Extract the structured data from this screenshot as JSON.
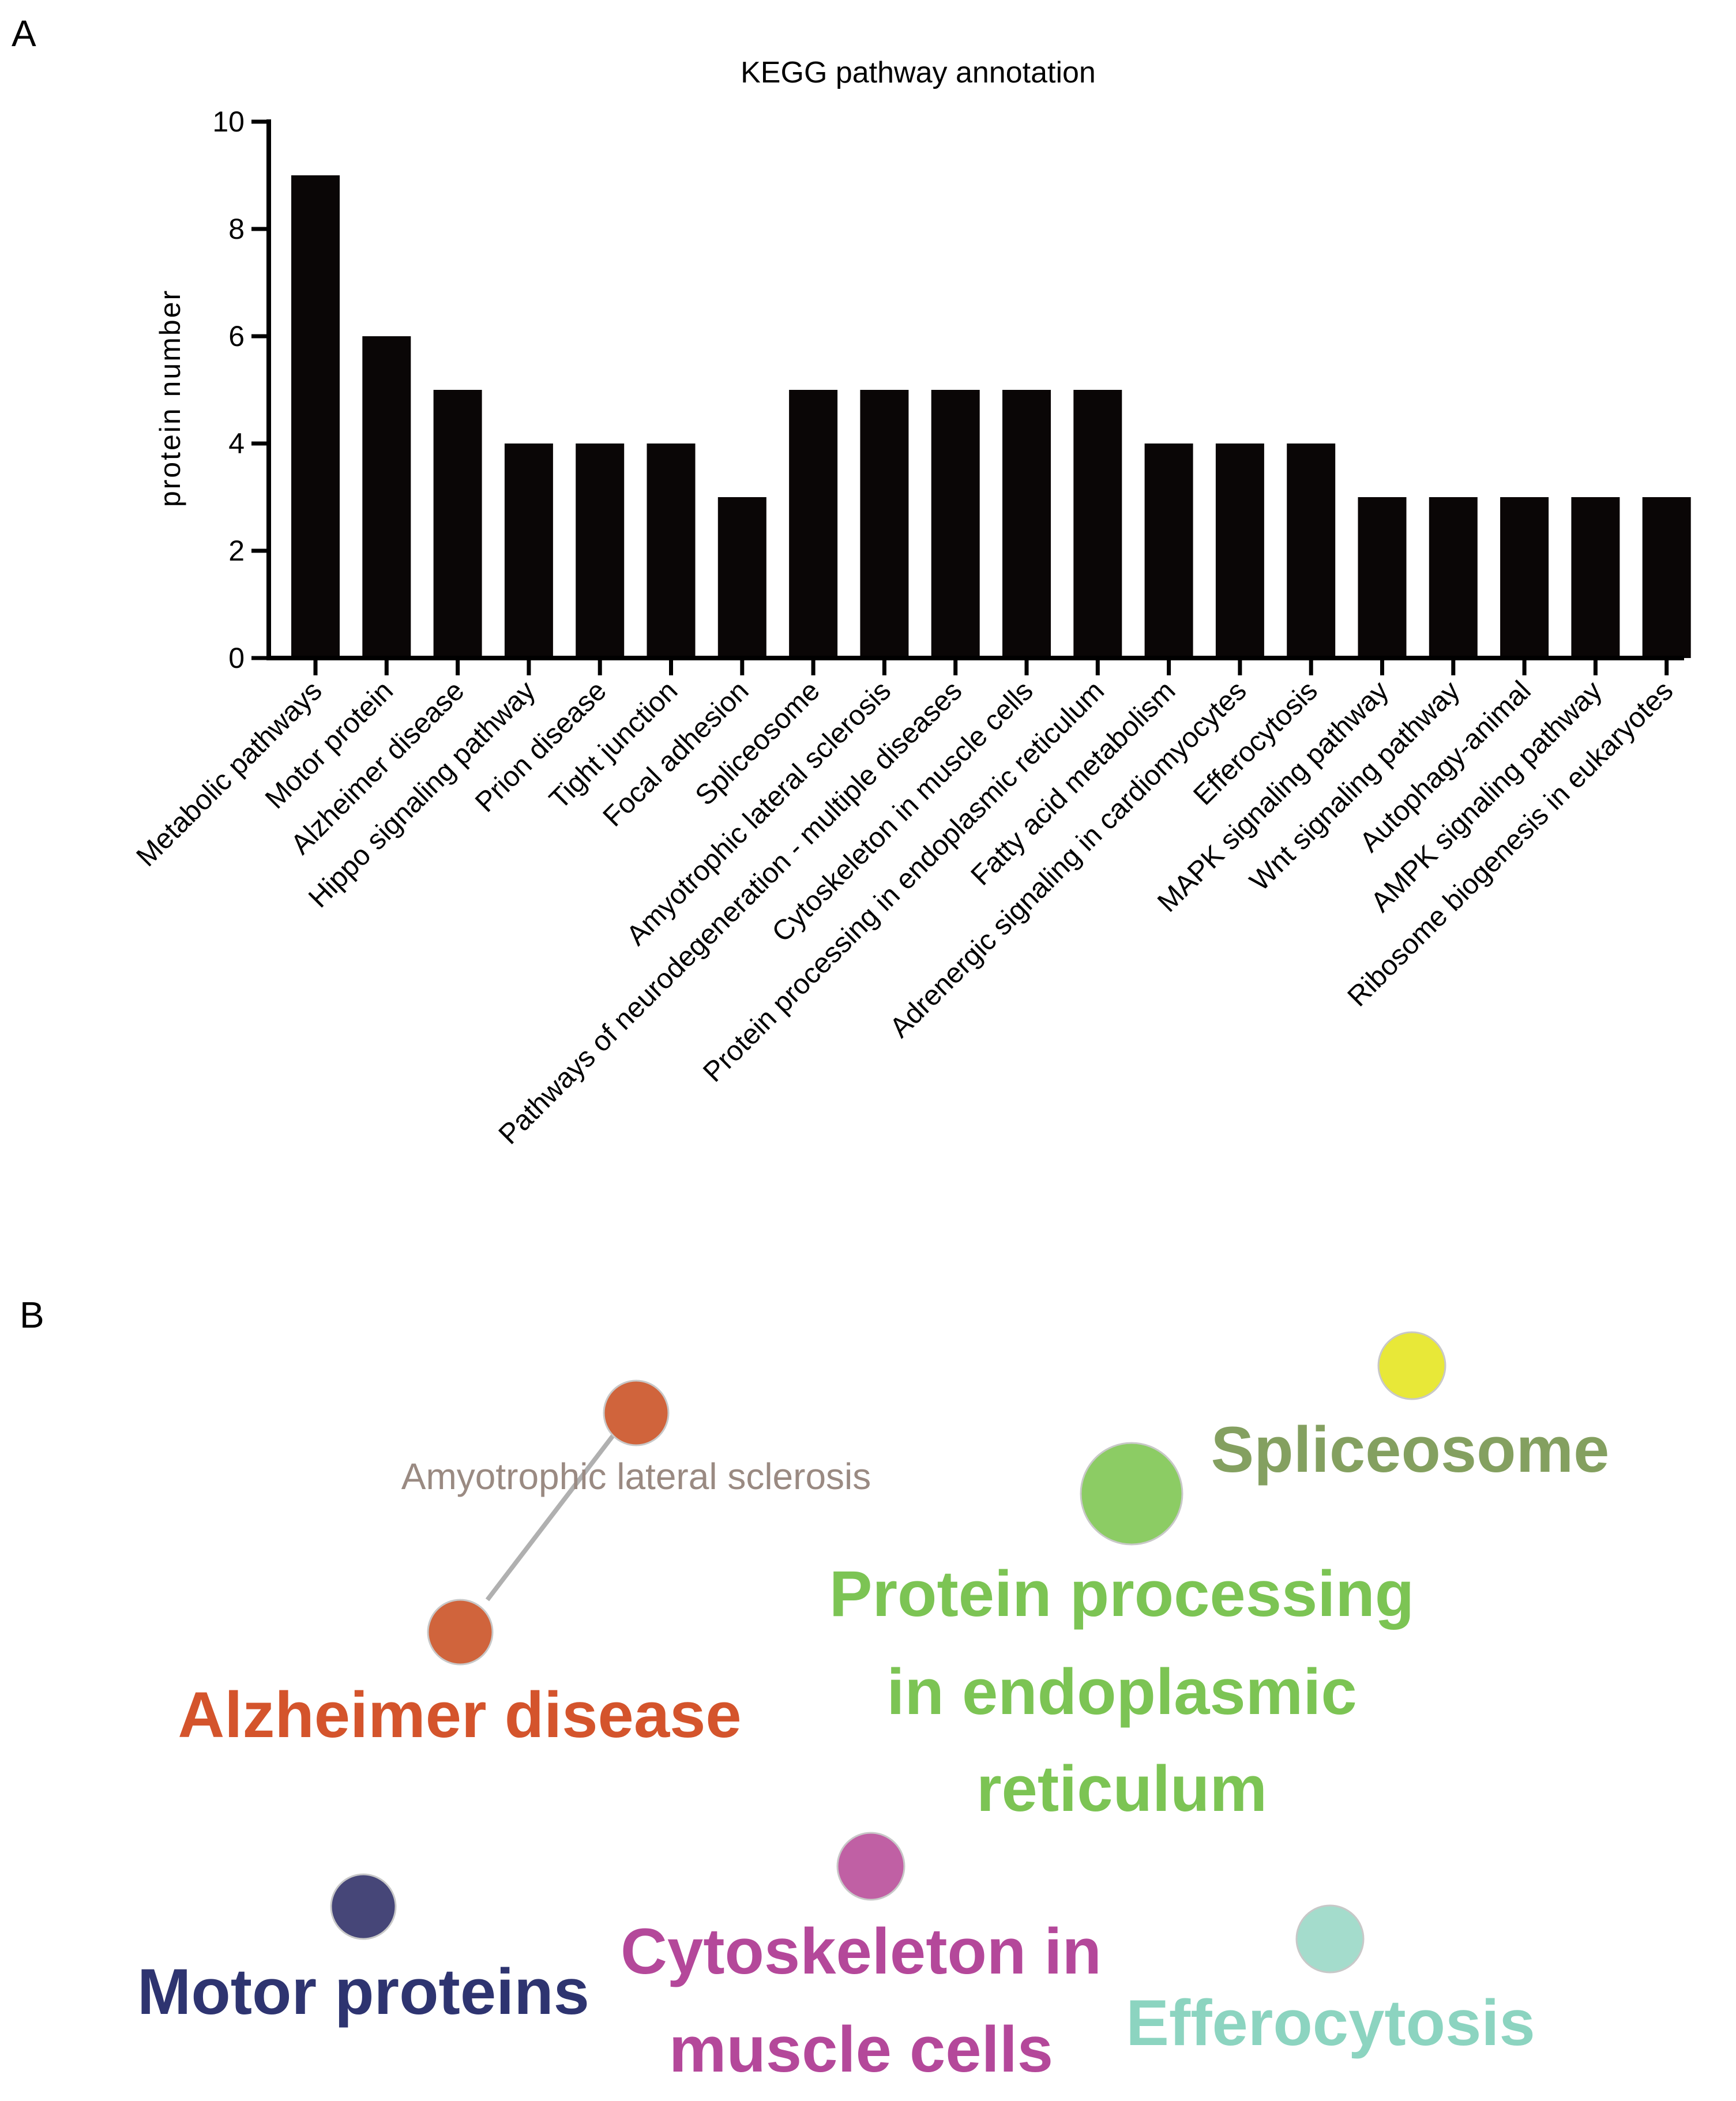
{
  "panels": {
    "a": "A",
    "b": "B"
  },
  "chart_data": [
    {
      "type": "bar",
      "title": "KEGG pathway annotation",
      "xlabel": "",
      "ylabel": "protein number",
      "ylim": [
        0,
        10
      ],
      "yticks": [
        0,
        2,
        4,
        6,
        8,
        10
      ],
      "bar_color": "#0a0606",
      "categories": [
        "Metabolic pathways",
        "Motor protein",
        "Alzheimer disease",
        "Hippo signaling pathway",
        "Prion disease",
        "Tight junction",
        "Focal adhesion",
        "Spliceosome",
        "Amyotrophic lateral sclerosis",
        "Pathways of neurodegeneration - multiple diseases",
        "Cytoskeleton in muscle cells",
        "Protein processing in endoplasmic reticulum",
        "Fatty acid metabolism",
        "Adrenergic signaling in cardiomyocytes",
        "Efferocytosis",
        "MAPK signaling pathway",
        "Wnt signaling pathway",
        "Autophagy-animal",
        "AMPK signaling pathway",
        "Ribosome biogenesis in eukaryotes"
      ],
      "values": [
        9,
        6,
        5,
        4,
        4,
        4,
        3,
        5,
        5,
        5,
        5,
        5,
        4,
        4,
        4,
        3,
        3,
        3,
        3,
        3
      ]
    },
    {
      "type": "network",
      "nodes": [
        {
          "id": "als",
          "label": "Amyotrophic lateral sclerosis",
          "color": "#d0643c",
          "label_color": "#9a8a82"
        },
        {
          "id": "alz",
          "label": "Alzheimer disease",
          "color": "#d0643c",
          "label_color": "#d4542c"
        },
        {
          "id": "splice",
          "label": "Spliceosome",
          "color": "#e8e838",
          "label_color": "#84a060"
        },
        {
          "id": "protproc",
          "label_lines": [
            "Protein processing",
            "in endoplasmic",
            "reticulum"
          ],
          "color": "#8ccc64",
          "label_color": "#7cc454"
        },
        {
          "id": "motor",
          "label": "Motor proteins",
          "color": "#464678",
          "label_color": "#2e3470"
        },
        {
          "id": "cyto",
          "label_lines": [
            "Cytoskeleton in",
            "muscle cells"
          ],
          "color": "#c060a4",
          "label_color": "#b4489a"
        },
        {
          "id": "effero",
          "label": "Efferocytosis",
          "color": "#a4dccc",
          "label_color": "#8cd4c0"
        }
      ],
      "edges": [
        {
          "source": "als",
          "target": "alz",
          "color": "#b0b0b0"
        }
      ]
    }
  ]
}
